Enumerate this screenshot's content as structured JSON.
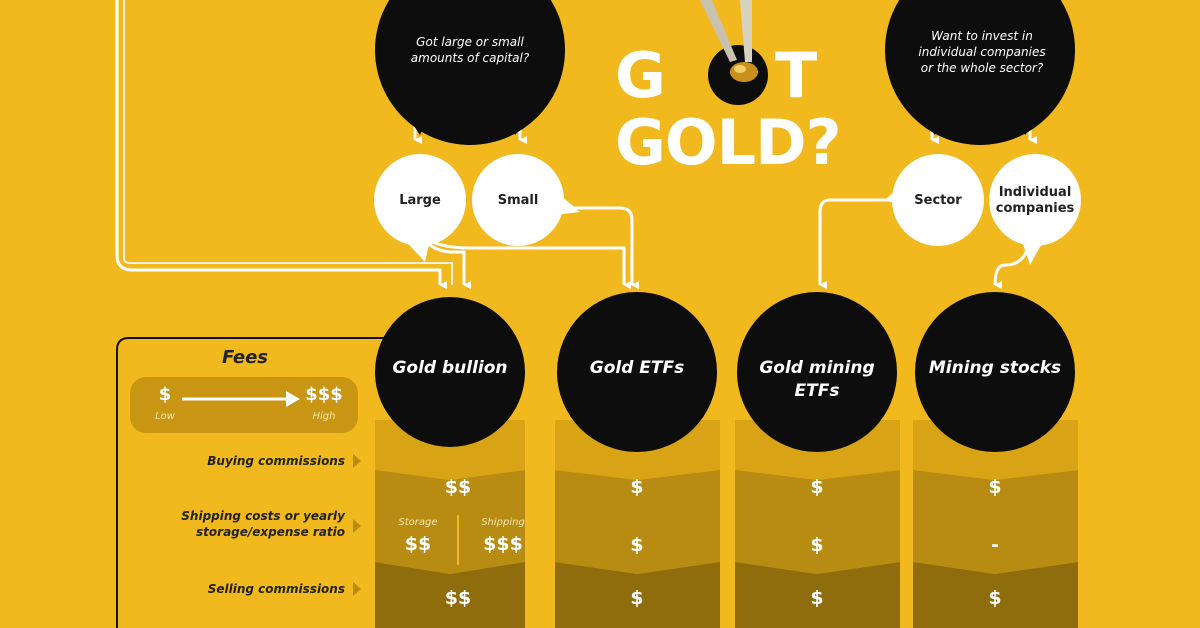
{
  "logo": {
    "line1_left": "G",
    "line1_right": "T",
    "line2": "GOLD?"
  },
  "questions": [
    {
      "id": "capital",
      "text": "Got large or small amounts of capital?"
    },
    {
      "id": "sector",
      "text": "Want to invest in individual companies or the whole sector?"
    }
  ],
  "options": [
    {
      "id": "large",
      "label": "Large"
    },
    {
      "id": "small",
      "label": "Small"
    },
    {
      "id": "sector",
      "label": "Sector"
    },
    {
      "id": "individual",
      "label": "Individual companies"
    }
  ],
  "fees_legend": {
    "title": "Fees",
    "low_symbol": "$",
    "low_label": "Low",
    "high_symbol": "$$$",
    "high_label": "High"
  },
  "rows": [
    {
      "label": "Buying commissions"
    },
    {
      "label": "Shipping costs or yearly storage/expense ratio"
    },
    {
      "label": "Selling commissions"
    }
  ],
  "columns": [
    {
      "title": "Gold bullion",
      "buying": "$$",
      "storage_label": "Storage",
      "storage": "$$",
      "shipping_label": "Shipping",
      "shipping": "$$$",
      "selling": "$$"
    },
    {
      "title": "Gold ETFs",
      "buying": "$",
      "middle": "$",
      "selling": "$"
    },
    {
      "title": "Gold mining ETFs",
      "buying": "$",
      "middle": "$",
      "selling": "$"
    },
    {
      "title": "Mining stocks",
      "buying": "$",
      "middle": "-",
      "selling": "$"
    }
  ],
  "colors": {
    "background": "#f1b91e",
    "circle": "#0d0d0d",
    "bubble": "#ffffff",
    "row1": "#d29f14",
    "row2": "#b58a12",
    "row3": "#8f6c0c",
    "legend_bar": "#c89612"
  },
  "icons": {
    "tweezers": "tweezers-icon",
    "nugget": "gold-nugget-icon",
    "arrow": "arrow-right-icon"
  }
}
